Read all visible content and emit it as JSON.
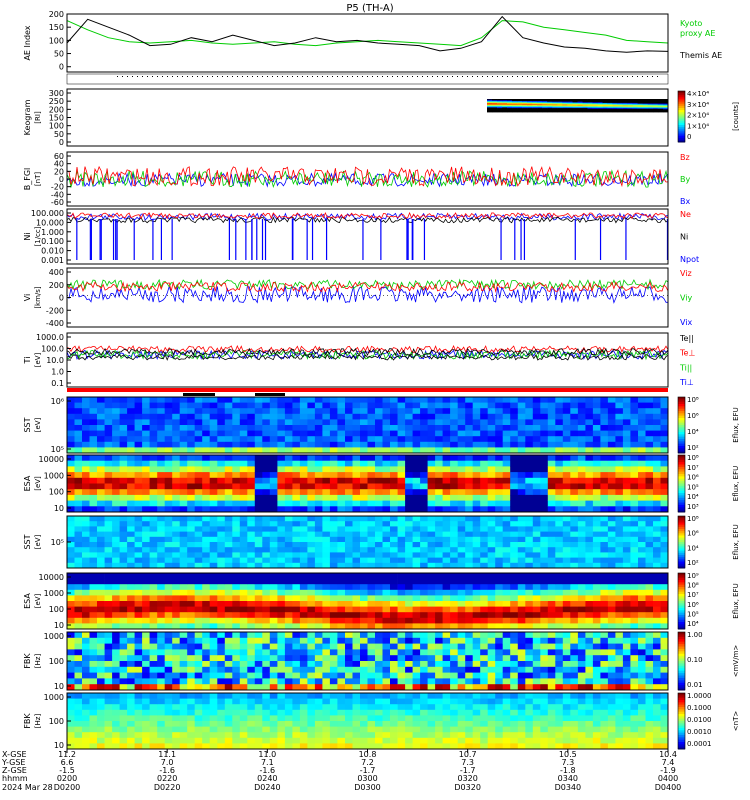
{
  "title": "P5 (TH-A)",
  "date_label": "2024 Mar 28",
  "chart_data": [
    {
      "type": "line",
      "panel": "ae",
      "ylabel": "AE Index",
      "ylim": [
        -20,
        200
      ],
      "yticks": [
        "200",
        "150",
        "100",
        "50",
        "0"
      ],
      "series": [
        {
          "name": "Kyoto proxy AE",
          "color": "#00cc00",
          "values": [
            175,
            140,
            110,
            95,
            90,
            95,
            100,
            90,
            85,
            90,
            95,
            85,
            80,
            90,
            95,
            100,
            95,
            90,
            85,
            80,
            110,
            175,
            170,
            150,
            140,
            130,
            120,
            100,
            95,
            90
          ]
        },
        {
          "name": "Themis AE",
          "color": "#000000",
          "values": [
            90,
            180,
            150,
            120,
            80,
            85,
            110,
            95,
            120,
            100,
            80,
            90,
            110,
            95,
            100,
            90,
            85,
            80,
            60,
            70,
            95,
            190,
            110,
            90,
            75,
            70,
            60,
            55,
            60,
            58
          ]
        }
      ],
      "legend": [
        "Kyoto",
        "proxy AE",
        "Themis AE"
      ]
    },
    {
      "type": "heatmap",
      "panel": "keogram",
      "ylabel": "Keogram",
      "unit": "[RI]",
      "ylim": [
        0,
        300
      ],
      "yticks": [
        "300",
        "250",
        "200",
        "150",
        "100",
        "50",
        "0"
      ],
      "colorbar": {
        "label": "[counts]",
        "ticks": [
          "4×10⁴",
          "3×10⁴",
          "2×10⁴",
          "1×10⁴",
          "0"
        ]
      }
    },
    {
      "type": "line",
      "panel": "b_fgl",
      "ylabel": "B_FGl",
      "unit": "[nT]",
      "yticks": [
        "60",
        "40",
        "20",
        "0",
        "-20",
        "-40",
        "-60"
      ],
      "series": [
        {
          "name": "Bz",
          "color": "#ff0000"
        },
        {
          "name": "By",
          "color": "#00cc00"
        },
        {
          "name": "Bx",
          "color": "#0000ff"
        }
      ]
    },
    {
      "type": "line",
      "panel": "ni",
      "ylabel": "Ni",
      "unit": "[1/cc]",
      "scale": "log",
      "yticks": [
        "100.000",
        "10.000",
        "1.000",
        "0.100",
        "0.010",
        "0.001"
      ],
      "series": [
        {
          "name": "Ne",
          "color": "#ff0000"
        },
        {
          "name": "Ni",
          "color": "#000000"
        },
        {
          "name": "Npot",
          "color": "#0000ff"
        }
      ]
    },
    {
      "type": "line",
      "panel": "vi",
      "ylabel": "Vi",
      "unit": "[km/s]",
      "yticks": [
        "400",
        "200",
        "0",
        "-200",
        "-400"
      ],
      "series": [
        {
          "name": "Viz",
          "color": "#ff0000"
        },
        {
          "name": "Viy",
          "color": "#00cc00"
        },
        {
          "name": "Vix",
          "color": "#0000ff"
        }
      ]
    },
    {
      "type": "line",
      "panel": "ti",
      "ylabel": "Ti",
      "unit": "[eV]",
      "scale": "log",
      "yticks": [
        "1000.0",
        "100.0",
        "10.0",
        "1.0",
        "0.1"
      ],
      "series": [
        {
          "name": "Te||",
          "color": "#000000"
        },
        {
          "name": "Te⊥",
          "color": "#ff0000"
        },
        {
          "name": "Ti||",
          "color": "#00cc00"
        },
        {
          "name": "Ti⊥",
          "color": "#0000ff"
        }
      ]
    },
    {
      "type": "heatmap",
      "panel": "sst_ions",
      "ylabel": "SST",
      "unit": "[eV]",
      "yticks": [
        "10⁶",
        "10⁵"
      ],
      "colorbar": {
        "label": "Eflux, EFU",
        "ticks": [
          "10⁸",
          "10⁶",
          "10⁴",
          "10²"
        ]
      }
    },
    {
      "type": "heatmap",
      "panel": "esa_ions",
      "ylabel": "ESA",
      "unit": "[eV]",
      "yticks": [
        "10000",
        "1000",
        "100",
        "10"
      ],
      "colorbar": {
        "label": "Eflux, EFU",
        "ticks": [
          "10⁸",
          "10⁷",
          "10⁶",
          "10⁵",
          "10⁴",
          "10³"
        ]
      }
    },
    {
      "type": "heatmap",
      "panel": "sst_elec",
      "ylabel": "SST",
      "unit": "[eV]",
      "yticks": [
        "10⁵"
      ],
      "colorbar": {
        "label": "Eflux, EFU",
        "ticks": [
          "10⁸",
          "10⁶",
          "10⁴",
          "10²"
        ]
      }
    },
    {
      "type": "heatmap",
      "panel": "esa_elec",
      "ylabel": "ESA",
      "unit": "[eV]",
      "yticks": [
        "10000",
        "1000",
        "100",
        "10"
      ],
      "colorbar": {
        "label": "Eflux, EFU",
        "ticks": [
          "10⁹",
          "10⁸",
          "10⁷",
          "10⁶",
          "10⁵",
          "10⁴"
        ]
      }
    },
    {
      "type": "heatmap",
      "panel": "fbk_e",
      "ylabel": "FBK",
      "unit": "[Hz]",
      "yticks": [
        "1000",
        "100",
        "10"
      ],
      "colorbar": {
        "label": "<mV/m>",
        "ticks": [
          "1.00",
          "0.10",
          "0.01"
        ]
      }
    },
    {
      "type": "heatmap",
      "panel": "fbk_b",
      "ylabel": "FBK",
      "unit": "[Hz]",
      "yticks": [
        "1000",
        "100",
        "10"
      ],
      "colorbar": {
        "label": "<nT>",
        "ticks": [
          "1.0000",
          "0.1000",
          "0.0100",
          "0.0010",
          "0.0001"
        ]
      }
    }
  ],
  "ephemeris": {
    "row_labels": [
      "X-GSE",
      "Y-GSE",
      "Z-GSE",
      "hhmm"
    ],
    "columns": [
      {
        "x": "11.2",
        "y": "6.6",
        "z": "-1.5",
        "t": "0200"
      },
      {
        "x": "11.1",
        "y": "7.0",
        "z": "-1.6",
        "t": "0220"
      },
      {
        "x": "11.0",
        "y": "7.1",
        "z": "-1.6",
        "t": "0240"
      },
      {
        "x": "10.8",
        "y": "7.2",
        "z": "-1.7",
        "t": "0300"
      },
      {
        "x": "10.7",
        "y": "7.3",
        "z": "-1.7",
        "t": "0320"
      },
      {
        "x": "10.5",
        "y": "7.3",
        "z": "-1.8",
        "t": "0340"
      },
      {
        "x": "10.4",
        "y": "7.4",
        "z": "-1.9",
        "t": "0400"
      }
    ]
  }
}
